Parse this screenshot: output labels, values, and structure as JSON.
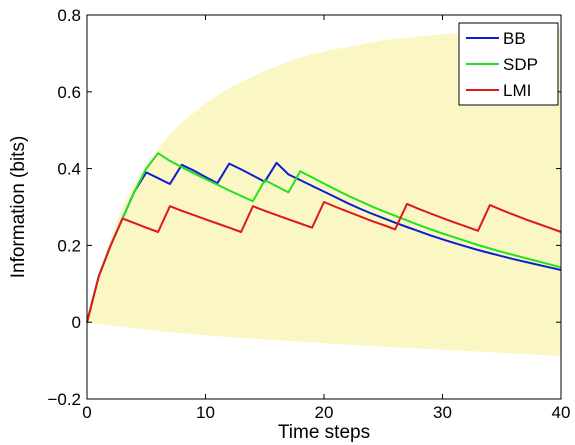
{
  "chart_data": {
    "type": "line",
    "xlabel": "Time steps",
    "ylabel": "Information (bits)",
    "xlim": [
      0,
      40
    ],
    "ylim": [
      -0.2,
      0.8
    ],
    "xticks": [
      "0",
      "10",
      "20",
      "30",
      "40"
    ],
    "xtick_values": [
      0,
      10,
      20,
      30,
      40
    ],
    "yticks": [
      "−0.2",
      "0",
      "0.2",
      "0.4",
      "0.6",
      "0.8"
    ],
    "ytick_values": [
      -0.2,
      0,
      0.2,
      0.4,
      0.6,
      0.8
    ],
    "grid": false,
    "legend_position": "top-right",
    "band": {
      "color": "#fbf7c4",
      "x": [
        0,
        1,
        2,
        3,
        4,
        5,
        6,
        7,
        8,
        10,
        12,
        15,
        18,
        20,
        25,
        30,
        35,
        40
      ],
      "upper": [
        0,
        0.12,
        0.22,
        0.3,
        0.36,
        0.41,
        0.45,
        0.49,
        0.52,
        0.57,
        0.61,
        0.655,
        0.69,
        0.705,
        0.735,
        0.75,
        0.76,
        0.765
      ],
      "lower": [
        0,
        -0.004,
        -0.008,
        -0.012,
        -0.016,
        -0.02,
        -0.023,
        -0.026,
        -0.029,
        -0.034,
        -0.039,
        -0.045,
        -0.051,
        -0.055,
        -0.064,
        -0.072,
        -0.08,
        -0.088
      ]
    },
    "series": [
      {
        "name": "BB",
        "color": "#0b1fd1",
        "x": [
          0,
          1,
          2,
          3,
          4,
          5,
          6,
          7,
          8,
          9,
          10,
          11,
          12,
          13,
          14,
          15,
          16,
          17,
          18,
          19,
          20,
          21,
          22,
          23,
          24,
          25,
          26,
          27,
          28,
          29,
          30,
          31,
          32,
          33,
          34,
          35,
          36,
          37,
          38,
          39,
          40
        ],
        "y": [
          0,
          0.12,
          0.2,
          0.27,
          0.34,
          0.39,
          0.375,
          0.36,
          0.41,
          0.395,
          0.378,
          0.362,
          0.413,
          0.398,
          0.382,
          0.366,
          0.415,
          0.385,
          0.37,
          0.355,
          0.34,
          0.325,
          0.31,
          0.296,
          0.283,
          0.271,
          0.259,
          0.248,
          0.237,
          0.226,
          0.216,
          0.206,
          0.197,
          0.188,
          0.18,
          0.172,
          0.164,
          0.157,
          0.15,
          0.143,
          0.136
        ]
      },
      {
        "name": "SDP",
        "color": "#22e022",
        "x": [
          0,
          1,
          2,
          3,
          4,
          5,
          6,
          7,
          8,
          9,
          10,
          11,
          12,
          13,
          14,
          15,
          16,
          17,
          18,
          19,
          20,
          21,
          22,
          23,
          24,
          25,
          26,
          27,
          28,
          29,
          30,
          31,
          32,
          33,
          34,
          35,
          36,
          37,
          38,
          39,
          40
        ],
        "y": [
          0,
          0.12,
          0.2,
          0.27,
          0.34,
          0.4,
          0.44,
          0.42,
          0.404,
          0.388,
          0.373,
          0.358,
          0.343,
          0.329,
          0.315,
          0.37,
          0.354,
          0.338,
          0.393,
          0.377,
          0.361,
          0.345,
          0.33,
          0.316,
          0.302,
          0.289,
          0.277,
          0.265,
          0.253,
          0.242,
          0.231,
          0.221,
          0.211,
          0.201,
          0.192,
          0.183,
          0.175,
          0.167,
          0.159,
          0.151,
          0.143
        ]
      },
      {
        "name": "LMI",
        "color": "#e0171b",
        "x": [
          0,
          1,
          2,
          3,
          4,
          5,
          6,
          7,
          8,
          9,
          10,
          11,
          12,
          13,
          14,
          15,
          16,
          17,
          18,
          19,
          20,
          21,
          22,
          23,
          24,
          25,
          26,
          27,
          28,
          29,
          30,
          31,
          32,
          33,
          34,
          35,
          36,
          37,
          38,
          39,
          40
        ],
        "y": [
          0,
          0.12,
          0.2,
          0.27,
          0.258,
          0.246,
          0.235,
          0.302,
          0.29,
          0.279,
          0.268,
          0.257,
          0.246,
          0.235,
          0.302,
          0.29,
          0.279,
          0.268,
          0.257,
          0.246,
          0.313,
          0.3,
          0.288,
          0.276,
          0.264,
          0.253,
          0.242,
          0.308,
          0.295,
          0.283,
          0.271,
          0.26,
          0.249,
          0.238,
          0.305,
          0.292,
          0.28,
          0.268,
          0.257,
          0.246,
          0.235
        ]
      }
    ]
  }
}
